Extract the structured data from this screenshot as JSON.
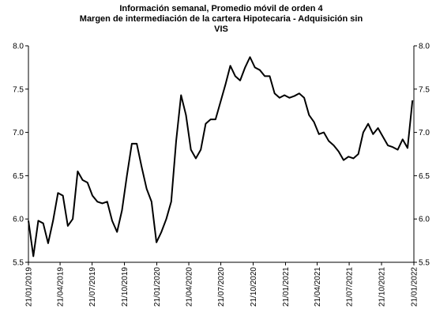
{
  "chart_data": {
    "type": "line",
    "title": [
      "Información semanal, Promedio móvil de orden 4",
      "Margen de intermediación de la cartera  Hipotecaria - Adquisición sin",
      "VIS"
    ],
    "x": [
      "2019-01-21",
      "2019-02-04",
      "2019-02-18",
      "2019-03-04",
      "2019-03-18",
      "2019-04-01",
      "2019-04-15",
      "2019-04-29",
      "2019-05-13",
      "2019-05-27",
      "2019-06-10",
      "2019-06-24",
      "2019-07-08",
      "2019-07-22",
      "2019-08-05",
      "2019-08-19",
      "2019-09-02",
      "2019-09-16",
      "2019-09-30",
      "2019-10-14",
      "2019-10-28",
      "2019-11-11",
      "2019-11-25",
      "2019-12-09",
      "2019-12-23",
      "2020-01-06",
      "2020-01-20",
      "2020-02-03",
      "2020-02-17",
      "2020-03-02",
      "2020-03-16",
      "2020-03-30",
      "2020-04-13",
      "2020-04-27",
      "2020-05-11",
      "2020-05-25",
      "2020-06-08",
      "2020-06-22",
      "2020-07-06",
      "2020-07-20",
      "2020-08-03",
      "2020-08-17",
      "2020-08-31",
      "2020-09-14",
      "2020-09-28",
      "2020-10-12",
      "2020-10-26",
      "2020-11-09",
      "2020-11-23",
      "2020-12-07",
      "2020-12-21",
      "2021-01-04",
      "2021-01-18",
      "2021-02-01",
      "2021-02-15",
      "2021-03-01",
      "2021-03-15",
      "2021-03-29",
      "2021-04-12",
      "2021-04-26",
      "2021-05-10",
      "2021-05-24",
      "2021-06-07",
      "2021-06-21",
      "2021-07-05",
      "2021-07-19",
      "2021-08-02",
      "2021-08-16",
      "2021-08-30",
      "2021-09-13",
      "2021-09-27",
      "2021-10-11",
      "2021-10-25",
      "2021-11-08",
      "2021-11-22",
      "2021-12-06",
      "2021-12-20",
      "2022-01-03",
      "2022-01-17"
    ],
    "series": [
      {
        "color": "#000000",
        "values": [
          5.98,
          5.57,
          5.98,
          5.95,
          5.72,
          5.98,
          6.3,
          6.27,
          5.92,
          6.0,
          6.55,
          6.45,
          6.42,
          6.27,
          6.2,
          6.18,
          6.2,
          5.98,
          5.85,
          6.1,
          6.5,
          6.87,
          6.87,
          6.6,
          6.35,
          6.2,
          5.73,
          5.85,
          6.0,
          6.2,
          6.9,
          7.43,
          7.2,
          6.8,
          6.7,
          6.8,
          7.1,
          7.15,
          7.15,
          7.35,
          7.55,
          7.77,
          7.65,
          7.6,
          7.75,
          7.87,
          7.75,
          7.72,
          7.65,
          7.65,
          7.45,
          7.4,
          7.43,
          7.4,
          7.42,
          7.45,
          7.4,
          7.2,
          7.12,
          6.98,
          7.0,
          6.9,
          6.85,
          6.78,
          6.68,
          6.72,
          6.7,
          6.75,
          7.0,
          7.1,
          6.98,
          7.05,
          6.95,
          6.85,
          6.83,
          6.8,
          6.92,
          6.82,
          7.37
        ]
      }
    ],
    "xlim": [
      "2019-01-21",
      "2022-01-21"
    ],
    "xticks": [
      {
        "value": "2019-01-21",
        "label": "21/01/2019"
      },
      {
        "value": "2019-04-21",
        "label": "21/04/2019"
      },
      {
        "value": "2019-07-21",
        "label": "21/07/2019"
      },
      {
        "value": "2019-10-21",
        "label": "21/10/2019"
      },
      {
        "value": "2020-01-21",
        "label": "21/01/2020"
      },
      {
        "value": "2020-04-21",
        "label": "21/04/2020"
      },
      {
        "value": "2020-07-21",
        "label": "21/07/2020"
      },
      {
        "value": "2020-10-21",
        "label": "21/10/2020"
      },
      {
        "value": "2021-01-21",
        "label": "21/01/2021"
      },
      {
        "value": "2021-04-21",
        "label": "21/04/2021"
      },
      {
        "value": "2021-07-21",
        "label": "21/07/2021"
      },
      {
        "value": "2021-10-21",
        "label": "21/10/2021"
      },
      {
        "value": "2022-01-21",
        "label": "21/01/2022"
      }
    ],
    "ylim": [
      5.5,
      8.0
    ],
    "yticks": [
      {
        "value": 5.5,
        "label": "5.5"
      },
      {
        "value": 6.0,
        "label": "6.0"
      },
      {
        "value": 6.5,
        "label": "6.5"
      },
      {
        "value": 7.0,
        "label": "7.0"
      },
      {
        "value": 7.5,
        "label": "7.5"
      },
      {
        "value": 8.0,
        "label": "8.0"
      }
    ],
    "y2lim": [
      5.5,
      8.0
    ],
    "y2ticks": [
      {
        "value": 5.5,
        "label": "5.5"
      },
      {
        "value": 6.0,
        "label": "6.0"
      },
      {
        "value": 6.5,
        "label": "6.5"
      },
      {
        "value": 7.0,
        "label": "7.0"
      },
      {
        "value": 7.5,
        "label": "7.5"
      },
      {
        "value": 8.0,
        "label": "8.0"
      }
    ],
    "grid": false
  }
}
